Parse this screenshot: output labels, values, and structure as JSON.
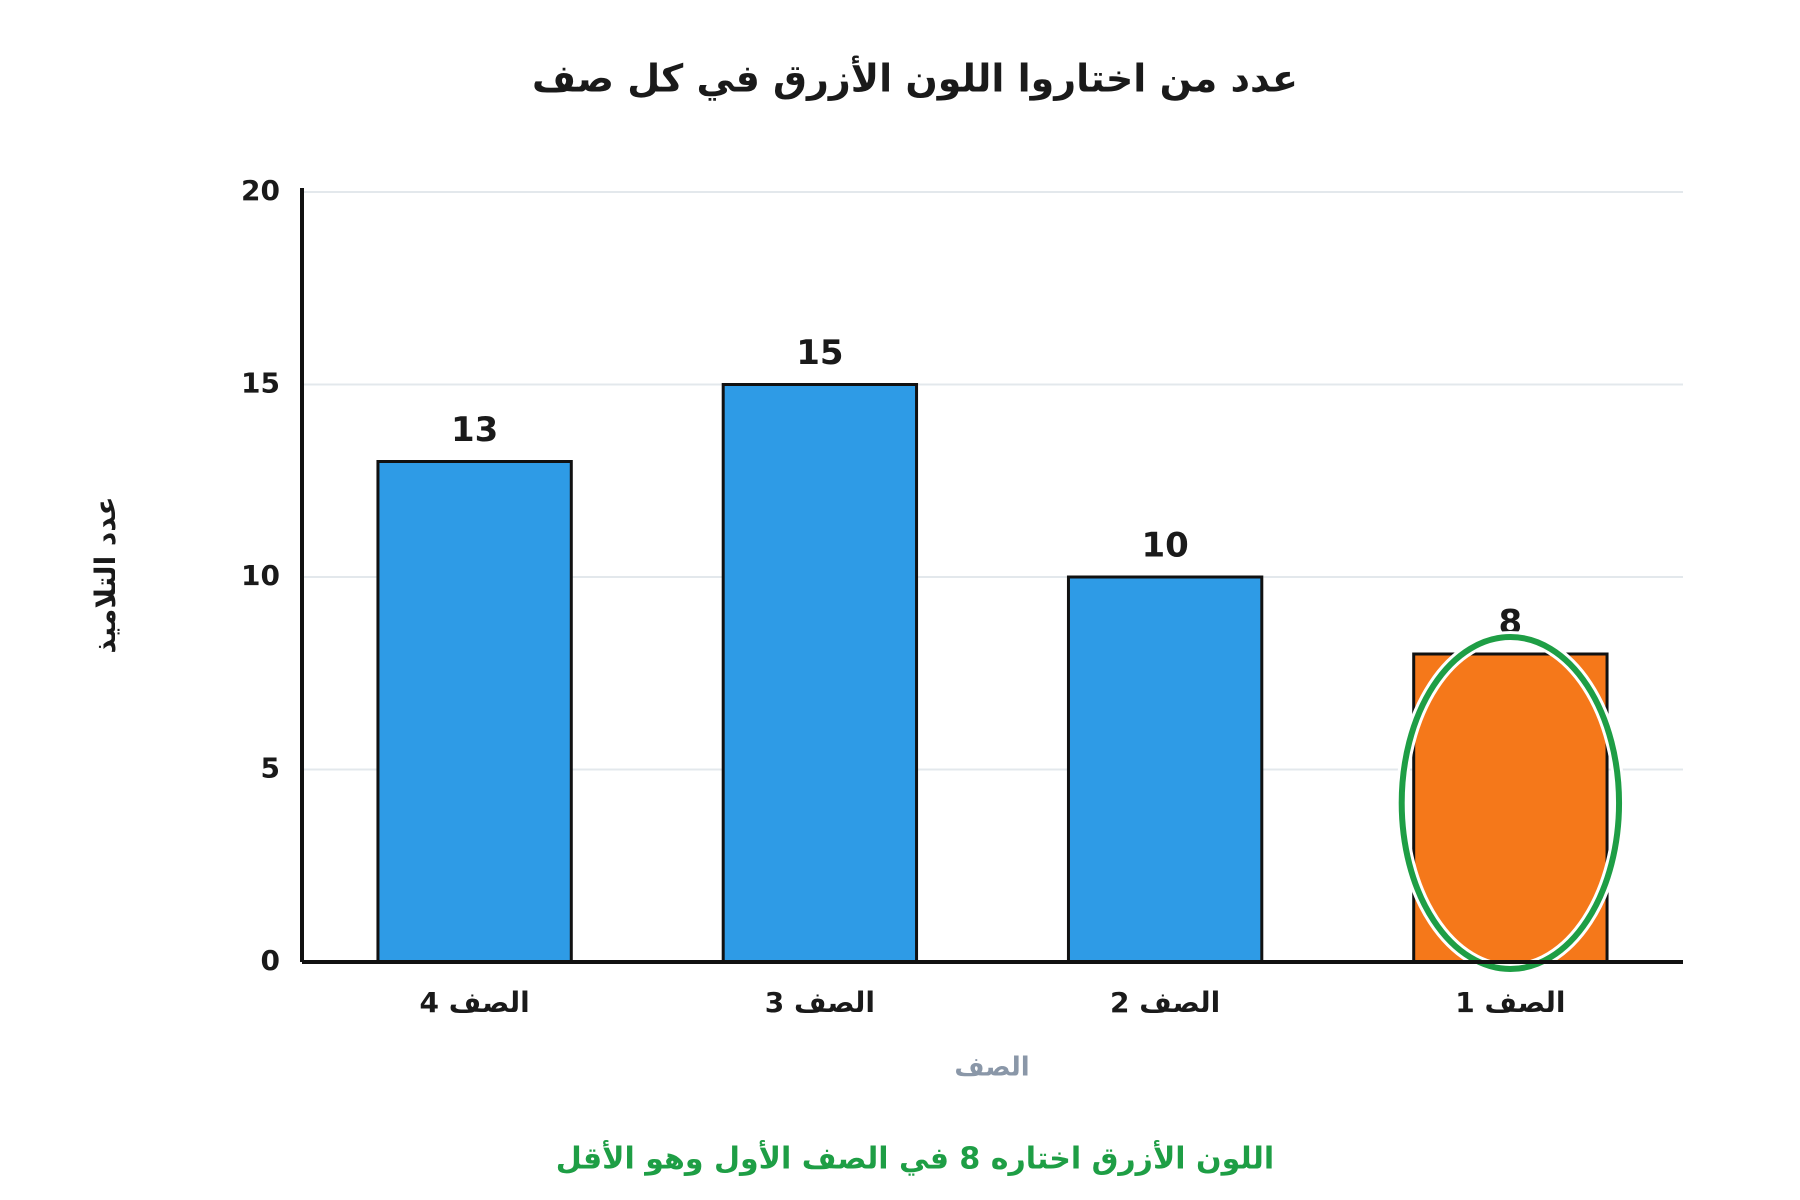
{
  "chart_data": {
    "type": "bar",
    "title": "عدد من اختاروا اللون الأزرق في كل صف",
    "x_label": "الصف",
    "y_label": "عدد التلاميذ",
    "categories": [
      "الصف 4",
      "الصف 3",
      "الصف 2",
      "الصف 1"
    ],
    "values": [
      13,
      15,
      10,
      8
    ],
    "colors": [
      "#2e9be6",
      "#2e9be6",
      "#2e9be6",
      "#f5781a"
    ],
    "highlight": "الصف 1",
    "highlight_color": "#1e9e45",
    "annotation": "اللون الأزرق اختاره 8 في الصف الأول وهو الأقل",
    "ylim": [
      0,
      20
    ],
    "yticks": [
      0,
      5,
      10,
      15,
      20
    ],
    "grid": true
  }
}
